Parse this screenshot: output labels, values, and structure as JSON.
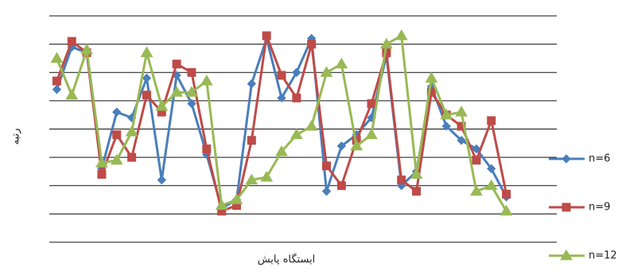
{
  "chart_data": {
    "type": "line",
    "x_label": "ایستگاه پایش",
    "y_label": "رتبه",
    "categories": [
      null,
      null,
      null,
      null,
      null,
      null,
      null,
      null,
      null,
      null,
      null,
      null,
      null,
      null,
      null,
      null,
      null,
      null,
      null,
      null,
      null,
      null,
      null,
      null,
      null,
      null,
      null,
      null,
      null,
      null,
      null
    ],
    "series": [
      {
        "name": "n=6",
        "color": "#4a7ebb",
        "marker": "diamond",
        "values": [
          5.4,
          6.9,
          6.7,
          2.6,
          4.6,
          4.4,
          5.8,
          2.2,
          5.9,
          4.9,
          3.1,
          1.2,
          1.5,
          5.6,
          7.2,
          5.1,
          6.0,
          7.2,
          1.8,
          3.4,
          3.8,
          4.4,
          6.6,
          2.0,
          2.5,
          5.5,
          4.1,
          3.6,
          3.3,
          2.6,
          1.6
        ]
      },
      {
        "name": "n=9",
        "color": "#be4b48",
        "marker": "square",
        "values": [
          5.7,
          7.1,
          6.7,
          2.4,
          3.8,
          3.0,
          5.2,
          4.6,
          6.3,
          6.0,
          3.3,
          1.1,
          1.3,
          3.6,
          7.3,
          5.9,
          5.1,
          7.0,
          2.7,
          2.0,
          3.6,
          4.9,
          6.7,
          2.2,
          1.8,
          5.3,
          4.5,
          4.1,
          2.9,
          4.3,
          1.7
        ]
      },
      {
        "name": "n=12",
        "color": "#98b954",
        "marker": "triangle",
        "values": [
          6.5,
          5.2,
          6.8,
          2.8,
          2.9,
          3.9,
          6.7,
          4.8,
          5.3,
          5.3,
          5.7,
          1.3,
          1.5,
          2.2,
          2.3,
          3.2,
          3.8,
          4.1,
          6.0,
          6.3,
          3.4,
          3.8,
          7.0,
          7.3,
          2.4,
          5.8,
          4.5,
          4.6,
          1.8,
          2.0,
          1.1
        ]
      }
    ],
    "ylim": [
      0,
      8
    ],
    "yticks": [
      0,
      1,
      2,
      3,
      4,
      5,
      6,
      7,
      8
    ],
    "grid": true,
    "legend": "right"
  }
}
